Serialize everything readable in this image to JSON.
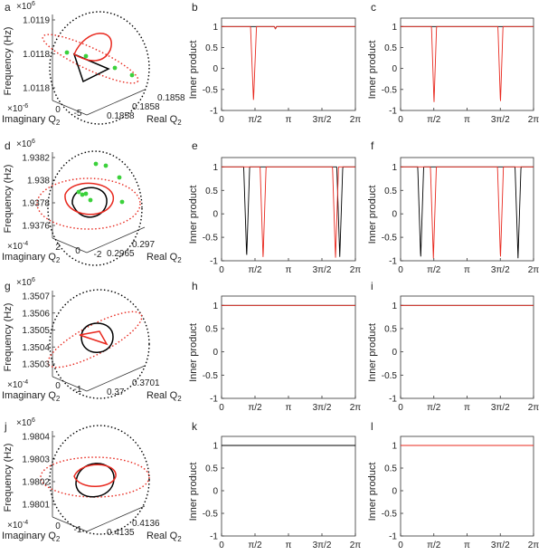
{
  "figure": {
    "panel_letters": [
      "a",
      "b",
      "c",
      "d",
      "e",
      "f",
      "g",
      "h",
      "i",
      "j",
      "k",
      "l"
    ],
    "colors": {
      "black": "#000000",
      "red": "#e8281e",
      "green": "#3bd13b",
      "frame": "#333333"
    }
  },
  "chart_data": [
    {
      "id": "a",
      "type": "scatter",
      "kind": "3d-trajectory",
      "zlabel": "Frequency (Hz)",
      "xlabel": "Imaginary Q",
      "xlabel_sub": "2",
      "ylabel": "Real Q",
      "ylabel_sub": "2",
      "z_exponent": "×10",
      "z_exponent_power": "6",
      "z_ticks": [
        "1.0119",
        "1.0118",
        "1.0118"
      ],
      "x_exponent": "×10",
      "x_exponent_power": "-6",
      "x_ticks": [
        "0",
        "-5"
      ],
      "y_ticks": [
        "0.1858",
        "0.1858",
        "0.1858"
      ],
      "series": [
        {
          "name": "black orbit",
          "color": "#000000",
          "style": "solid"
        },
        {
          "name": "black normal-mode ellipse",
          "color": "#000000",
          "style": "dotted"
        },
        {
          "name": "red orbit",
          "color": "#e8281e",
          "style": "solid"
        },
        {
          "name": "red normal-mode ellipse",
          "color": "#e8281e",
          "style": "dotted"
        },
        {
          "name": "bifurcation points",
          "color": "#3bd13b",
          "style": "marker",
          "count": 4
        }
      ]
    },
    {
      "id": "b",
      "type": "line",
      "xlabel": "",
      "ylabel": "Inner product",
      "xlim": [
        0,
        6.2832
      ],
      "ylim": [
        -1,
        1.2
      ],
      "xtick_labels": [
        "0",
        "π/2",
        "π",
        "3π/2",
        "2π"
      ],
      "ytick_labels": [
        "1",
        "0.5",
        "0",
        "-0.5",
        "-1"
      ],
      "series": [
        {
          "name": "black",
          "color": "#000000",
          "baseline": 1,
          "dips": [
            {
              "x": 2.53,
              "min": 0.94,
              "w": 0.05
            }
          ]
        },
        {
          "name": "red",
          "color": "#e8281e",
          "baseline": 1,
          "dips": [
            {
              "x": 1.5,
              "min": -0.78,
              "w": 0.14
            },
            {
              "x": 2.53,
              "min": 0.94,
              "w": 0.05
            }
          ]
        }
      ]
    },
    {
      "id": "c",
      "type": "line",
      "xlabel": "",
      "ylabel": "Inner product",
      "xlim": [
        0,
        6.2832
      ],
      "ylim": [
        -1,
        1.2
      ],
      "xtick_labels": [
        "0",
        "π/2",
        "π",
        "3π/2",
        "2π"
      ],
      "ytick_labels": [
        "1",
        "0.5",
        "0",
        "-0.5",
        "-1"
      ],
      "series": [
        {
          "name": "black",
          "color": "#000000",
          "baseline": 1,
          "dips": []
        },
        {
          "name": "red",
          "color": "#e8281e",
          "baseline": 1,
          "dips": [
            {
              "x": 1.58,
              "min": -0.82,
              "w": 0.12
            },
            {
              "x": 4.72,
              "min": -0.82,
              "w": 0.12
            }
          ]
        }
      ]
    },
    {
      "id": "d",
      "type": "scatter",
      "kind": "3d-trajectory",
      "zlabel": "Frequency (Hz)",
      "xlabel": "Imaginary Q",
      "xlabel_sub": "2",
      "ylabel": "Real Q",
      "ylabel_sub": "2",
      "z_exponent": "×10",
      "z_exponent_power": "6",
      "z_ticks": [
        "1.9382",
        "1.938",
        "1.9378",
        "1.9376"
      ],
      "x_exponent": "×10",
      "x_exponent_power": "-4",
      "x_ticks": [
        "2",
        "0",
        "-2"
      ],
      "y_ticks": [
        "0.2965",
        "0.297"
      ],
      "series": [
        {
          "name": "black orbit",
          "color": "#000000",
          "style": "solid"
        },
        {
          "name": "black normal-mode ellipse",
          "color": "#000000",
          "style": "dotted"
        },
        {
          "name": "red orbit",
          "color": "#e8281e",
          "style": "solid"
        },
        {
          "name": "red normal-mode ellipse",
          "color": "#e8281e",
          "style": "dotted"
        },
        {
          "name": "bifurcation points",
          "color": "#3bd13b",
          "style": "marker",
          "count": 8
        }
      ]
    },
    {
      "id": "e",
      "type": "line",
      "xlabel": "",
      "ylabel": "Inner product",
      "xlim": [
        0,
        6.2832
      ],
      "ylim": [
        -1,
        1.2
      ],
      "xtick_labels": [
        "0",
        "π/2",
        "π",
        "3π/2",
        "2π"
      ],
      "ytick_labels": [
        "1",
        "0.5",
        "0",
        "-0.5",
        "-1"
      ],
      "series": [
        {
          "name": "black",
          "color": "#000000",
          "baseline": 1,
          "dips": [
            {
              "x": 1.18,
              "min": -0.92,
              "w": 0.14
            },
            {
              "x": 5.55,
              "min": -0.92,
              "w": 0.14
            }
          ]
        },
        {
          "name": "red",
          "color": "#e8281e",
          "baseline": 1,
          "dips": [
            {
              "x": 1.95,
              "min": -0.95,
              "w": 0.14
            },
            {
              "x": 5.35,
              "min": -0.95,
              "w": 0.14
            }
          ]
        }
      ]
    },
    {
      "id": "f",
      "type": "line",
      "xlabel": "",
      "ylabel": "Inner product",
      "xlim": [
        0,
        6.2832
      ],
      "ylim": [
        -1,
        1.2
      ],
      "xtick_labels": [
        "0",
        "π/2",
        "π",
        "3π/2",
        "2π"
      ],
      "ytick_labels": [
        "1",
        "0.5",
        "0",
        "-0.5",
        "-1"
      ],
      "series": [
        {
          "name": "black",
          "color": "#000000",
          "baseline": 1,
          "dips": [
            {
              "x": 0.95,
              "min": -0.95,
              "w": 0.14
            },
            {
              "x": 5.55,
              "min": -0.95,
              "w": 0.14
            }
          ]
        },
        {
          "name": "red",
          "color": "#e8281e",
          "baseline": 1,
          "dips": [
            {
              "x": 1.55,
              "min": -0.95,
              "w": 0.14
            },
            {
              "x": 4.72,
              "min": -0.95,
              "w": 0.14
            }
          ]
        }
      ]
    },
    {
      "id": "g",
      "type": "scatter",
      "kind": "3d-trajectory",
      "zlabel": "Frequency (Hz)",
      "xlabel": "Imaginary Q",
      "xlabel_sub": "2",
      "ylabel": "Real Q",
      "ylabel_sub": "2",
      "z_exponent": "×10",
      "z_exponent_power": "6",
      "z_ticks": [
        "1.3507",
        "1.3506",
        "1.3505",
        "1.3504",
        "1.3503"
      ],
      "x_exponent": "×10",
      "x_exponent_power": "-4",
      "x_ticks": [
        "0",
        "-1"
      ],
      "y_ticks": [
        "0.37",
        "0.3701"
      ],
      "series": [
        {
          "name": "black orbit",
          "color": "#000000",
          "style": "solid"
        },
        {
          "name": "black normal-mode ellipse",
          "color": "#000000",
          "style": "dotted"
        },
        {
          "name": "red orbit",
          "color": "#e8281e",
          "style": "solid"
        },
        {
          "name": "red normal-mode ellipse",
          "color": "#e8281e",
          "style": "dotted"
        }
      ]
    },
    {
      "id": "h",
      "type": "line",
      "xlabel": "",
      "ylabel": "Inner product",
      "xlim": [
        0,
        6.2832
      ],
      "ylim": [
        -1,
        1.2
      ],
      "xtick_labels": [
        "0",
        "π/2",
        "π",
        "3π/2",
        "2π"
      ],
      "ytick_labels": [
        "1",
        "0.5",
        "0",
        "-0.5",
        "-1"
      ],
      "series": [
        {
          "name": "black",
          "color": "#000000",
          "baseline": 1,
          "dips": []
        },
        {
          "name": "red",
          "color": "#e8281e",
          "baseline": 1,
          "dips": []
        }
      ]
    },
    {
      "id": "i",
      "type": "line",
      "xlabel": "",
      "ylabel": "Inner product",
      "xlim": [
        0,
        6.2832
      ],
      "ylim": [
        -1,
        1.2
      ],
      "xtick_labels": [
        "0",
        "π/2",
        "π",
        "3π/2",
        "2π"
      ],
      "ytick_labels": [
        "1",
        "0.5",
        "0",
        "-0.5",
        "-1"
      ],
      "series": [
        {
          "name": "black",
          "color": "#000000",
          "baseline": 1,
          "dips": []
        },
        {
          "name": "red",
          "color": "#e8281e",
          "baseline": 1,
          "dips": []
        }
      ]
    },
    {
      "id": "j",
      "type": "scatter",
      "kind": "3d-trajectory",
      "zlabel": "Frequency (Hz)",
      "xlabel": "Imaginary Q",
      "xlabel_sub": "2",
      "ylabel": "Real Q",
      "ylabel_sub": "2",
      "z_exponent": "×10",
      "z_exponent_power": "6",
      "z_ticks": [
        "1.9804",
        "1.9803",
        "1.9802",
        "1.9801"
      ],
      "x_exponent": "×10",
      "x_exponent_power": "-4",
      "x_ticks": [
        "0",
        "-1"
      ],
      "y_ticks": [
        "0.4135",
        "0.4136"
      ],
      "series": [
        {
          "name": "black orbit",
          "color": "#000000",
          "style": "solid"
        },
        {
          "name": "black normal-mode ellipse",
          "color": "#000000",
          "style": "dotted"
        },
        {
          "name": "red orbit",
          "color": "#e8281e",
          "style": "solid"
        },
        {
          "name": "red normal-mode ellipse",
          "color": "#e8281e",
          "style": "dotted"
        }
      ]
    },
    {
      "id": "k",
      "type": "line",
      "xlabel": "",
      "ylabel": "Inner product",
      "xlim": [
        0,
        6.2832
      ],
      "ylim": [
        -1,
        1.2
      ],
      "xtick_labels": [
        "0",
        "π/2",
        "π",
        "3π/2",
        "2π"
      ],
      "ytick_labels": [
        "1",
        "0.5",
        "0",
        "-0.5",
        "-1"
      ],
      "series": [
        {
          "name": "black",
          "color": "#000000",
          "baseline": 1,
          "dips": []
        }
      ]
    },
    {
      "id": "l",
      "type": "line",
      "xlabel": "",
      "ylabel": "Inner product",
      "xlim": [
        0,
        6.2832
      ],
      "ylim": [
        -1,
        1.2
      ],
      "xtick_labels": [
        "0",
        "π/2",
        "π",
        "3π/2",
        "2π"
      ],
      "ytick_labels": [
        "1",
        "0.5",
        "0",
        "-0.5",
        "-1"
      ],
      "series": [
        {
          "name": "black",
          "color": "#000000",
          "baseline": 1,
          "dips": []
        },
        {
          "name": "red",
          "color": "#e8281e",
          "baseline": 1,
          "dips": []
        }
      ]
    }
  ]
}
